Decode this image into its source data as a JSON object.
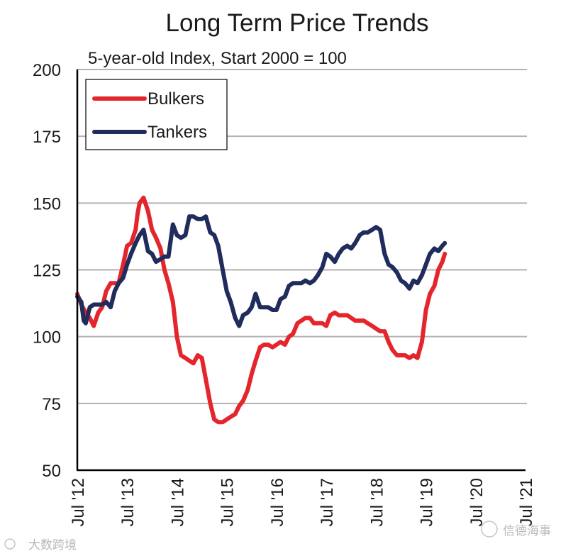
{
  "chart_data": {
    "type": "line",
    "title": "Long Term Price Trends",
    "subtitle": "5-year-old Index, Start 2000 = 100",
    "xlabel": "",
    "ylabel": "",
    "ylim": [
      50,
      200
    ],
    "yticks": [
      50,
      75,
      100,
      125,
      150,
      175,
      200
    ],
    "xlim": [
      2012.5,
      2021.5
    ],
    "xticks": [
      {
        "x": 2012.5,
        "label": "Jul '12"
      },
      {
        "x": 2013.5,
        "label": "Jul '13"
      },
      {
        "x": 2014.5,
        "label": "Jul '14"
      },
      {
        "x": 2015.5,
        "label": "Jul '15"
      },
      {
        "x": 2016.5,
        "label": "Jul '16"
      },
      {
        "x": 2017.5,
        "label": "Jul '17"
      },
      {
        "x": 2018.5,
        "label": "Jul '18"
      },
      {
        "x": 2019.5,
        "label": "Jul '19"
      },
      {
        "x": 2020.5,
        "label": "Jul '20"
      },
      {
        "x": 2021.5,
        "label": "Jul '21"
      }
    ],
    "grid": true,
    "legend_position": "top-left",
    "series": [
      {
        "name": "Bulkers",
        "color": "#e4262c",
        "points": [
          [
            2012.5,
            116
          ],
          [
            2012.58,
            112
          ],
          [
            2012.67,
            109
          ],
          [
            2012.75,
            107
          ],
          [
            2012.83,
            104
          ],
          [
            2012.92,
            109
          ],
          [
            2013.0,
            111
          ],
          [
            2013.08,
            117
          ],
          [
            2013.17,
            120
          ],
          [
            2013.25,
            120
          ],
          [
            2013.33,
            120
          ],
          [
            2013.42,
            127
          ],
          [
            2013.5,
            134
          ],
          [
            2013.58,
            135
          ],
          [
            2013.67,
            140
          ],
          [
            2013.71,
            146
          ],
          [
            2013.75,
            150
          ],
          [
            2013.83,
            152
          ],
          [
            2013.92,
            147
          ],
          [
            2014.0,
            140
          ],
          [
            2014.08,
            137
          ],
          [
            2014.17,
            133
          ],
          [
            2014.25,
            125
          ],
          [
            2014.33,
            120
          ],
          [
            2014.42,
            113
          ],
          [
            2014.5,
            100
          ],
          [
            2014.58,
            93
          ],
          [
            2014.67,
            92
          ],
          [
            2014.75,
            91
          ],
          [
            2014.83,
            90
          ],
          [
            2014.92,
            93
          ],
          [
            2015.0,
            92
          ],
          [
            2015.08,
            84
          ],
          [
            2015.17,
            75
          ],
          [
            2015.25,
            69
          ],
          [
            2015.33,
            68
          ],
          [
            2015.42,
            68
          ],
          [
            2015.5,
            69
          ],
          [
            2015.58,
            70
          ],
          [
            2015.67,
            71
          ],
          [
            2015.75,
            74
          ],
          [
            2015.83,
            76
          ],
          [
            2015.92,
            80
          ],
          [
            2016.0,
            86
          ],
          [
            2016.08,
            91
          ],
          [
            2016.17,
            96
          ],
          [
            2016.25,
            97
          ],
          [
            2016.33,
            97
          ],
          [
            2016.42,
            96
          ],
          [
            2016.5,
            97
          ],
          [
            2016.58,
            98
          ],
          [
            2016.67,
            97
          ],
          [
            2016.75,
            100
          ],
          [
            2016.83,
            101
          ],
          [
            2016.92,
            105
          ],
          [
            2017.0,
            106
          ],
          [
            2017.08,
            107
          ],
          [
            2017.17,
            107
          ],
          [
            2017.25,
            105
          ],
          [
            2017.33,
            105
          ],
          [
            2017.42,
            105
          ],
          [
            2017.5,
            104
          ],
          [
            2017.58,
            108
          ],
          [
            2017.67,
            109
          ],
          [
            2017.75,
            108
          ],
          [
            2017.83,
            108
          ],
          [
            2017.92,
            108
          ],
          [
            2018.0,
            107
          ],
          [
            2018.08,
            106
          ],
          [
            2018.17,
            106
          ],
          [
            2018.25,
            106
          ],
          [
            2018.33,
            105
          ],
          [
            2018.42,
            104
          ],
          [
            2018.5,
            103
          ],
          [
            2018.58,
            102
          ],
          [
            2018.67,
            102
          ],
          [
            2018.75,
            98
          ],
          [
            2018.83,
            95
          ],
          [
            2018.92,
            93
          ],
          [
            2019.0,
            93
          ],
          [
            2019.08,
            93
          ],
          [
            2019.17,
            92
          ],
          [
            2019.25,
            93
          ],
          [
            2019.33,
            92
          ],
          [
            2019.42,
            98
          ],
          [
            2019.5,
            110
          ],
          [
            2019.58,
            116
          ],
          [
            2019.67,
            119
          ],
          [
            2019.75,
            125
          ],
          [
            2019.83,
            128
          ],
          [
            2019.88,
            131
          ]
        ]
      },
      {
        "name": "Tankers",
        "color": "#1f2c5c",
        "points": [
          [
            2012.5,
            115
          ],
          [
            2012.58,
            113
          ],
          [
            2012.63,
            106
          ],
          [
            2012.67,
            105
          ],
          [
            2012.75,
            111
          ],
          [
            2012.83,
            112
          ],
          [
            2012.92,
            112
          ],
          [
            2013.0,
            112
          ],
          [
            2013.08,
            113
          ],
          [
            2013.17,
            111
          ],
          [
            2013.25,
            117
          ],
          [
            2013.33,
            120
          ],
          [
            2013.42,
            122
          ],
          [
            2013.5,
            127
          ],
          [
            2013.58,
            131
          ],
          [
            2013.67,
            135
          ],
          [
            2013.75,
            138
          ],
          [
            2013.83,
            140
          ],
          [
            2013.92,
            132
          ],
          [
            2014.0,
            131
          ],
          [
            2014.08,
            128
          ],
          [
            2014.17,
            129
          ],
          [
            2014.25,
            130
          ],
          [
            2014.33,
            130
          ],
          [
            2014.42,
            142
          ],
          [
            2014.5,
            138
          ],
          [
            2014.58,
            137
          ],
          [
            2014.67,
            138
          ],
          [
            2014.75,
            145
          ],
          [
            2014.83,
            145
          ],
          [
            2014.92,
            144
          ],
          [
            2015.0,
            144
          ],
          [
            2015.08,
            145
          ],
          [
            2015.17,
            139
          ],
          [
            2015.25,
            138
          ],
          [
            2015.33,
            134
          ],
          [
            2015.42,
            125
          ],
          [
            2015.5,
            117
          ],
          [
            2015.58,
            113
          ],
          [
            2015.67,
            107
          ],
          [
            2015.75,
            104
          ],
          [
            2015.83,
            108
          ],
          [
            2015.92,
            109
          ],
          [
            2016.0,
            111
          ],
          [
            2016.08,
            116
          ],
          [
            2016.17,
            111
          ],
          [
            2016.25,
            111
          ],
          [
            2016.33,
            111
          ],
          [
            2016.42,
            110
          ],
          [
            2016.5,
            110
          ],
          [
            2016.58,
            114
          ],
          [
            2016.67,
            115
          ],
          [
            2016.75,
            119
          ],
          [
            2016.83,
            120
          ],
          [
            2016.92,
            120
          ],
          [
            2017.0,
            120
          ],
          [
            2017.08,
            121
          ],
          [
            2017.17,
            120
          ],
          [
            2017.25,
            121
          ],
          [
            2017.33,
            123
          ],
          [
            2017.42,
            126
          ],
          [
            2017.5,
            131
          ],
          [
            2017.58,
            130
          ],
          [
            2017.67,
            128
          ],
          [
            2017.75,
            131
          ],
          [
            2017.83,
            133
          ],
          [
            2017.92,
            134
          ],
          [
            2018.0,
            133
          ],
          [
            2018.08,
            135
          ],
          [
            2018.17,
            138
          ],
          [
            2018.25,
            139
          ],
          [
            2018.33,
            139
          ],
          [
            2018.42,
            140
          ],
          [
            2018.5,
            141
          ],
          [
            2018.58,
            140
          ],
          [
            2018.67,
            131
          ],
          [
            2018.75,
            127
          ],
          [
            2018.83,
            126
          ],
          [
            2018.92,
            124
          ],
          [
            2019.0,
            121
          ],
          [
            2019.08,
            120
          ],
          [
            2019.17,
            118
          ],
          [
            2019.25,
            121
          ],
          [
            2019.33,
            120
          ],
          [
            2019.42,
            123
          ],
          [
            2019.5,
            127
          ],
          [
            2019.58,
            131
          ],
          [
            2019.67,
            133
          ],
          [
            2019.75,
            132
          ],
          [
            2019.83,
            134
          ],
          [
            2019.88,
            135
          ]
        ]
      }
    ]
  },
  "watermarks": {
    "left": "大数跨境",
    "right": "信德海事"
  }
}
